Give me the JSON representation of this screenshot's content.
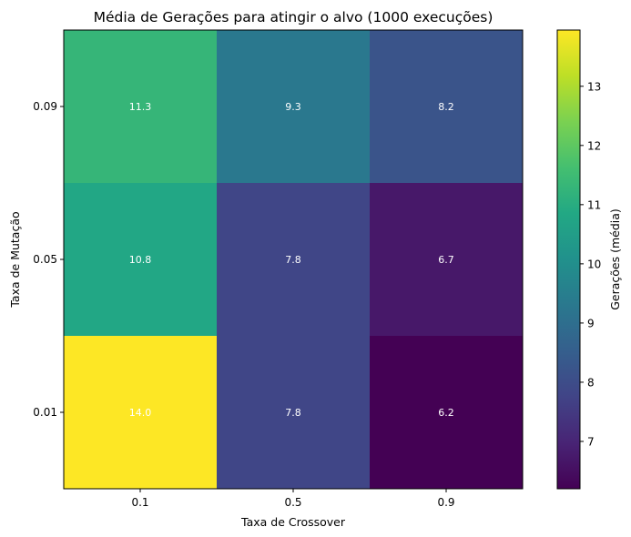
{
  "chart_data": {
    "type": "heatmap",
    "title": "Média de Gerações para atingir o alvo (1000 execuções)",
    "xlabel": "Taxa de Crossover",
    "ylabel": "Taxa de Mutação",
    "x_categories": [
      "0.1",
      "0.5",
      "0.9"
    ],
    "y_categories": [
      "0.09",
      "0.05",
      "0.01"
    ],
    "values": [
      [
        11.3,
        9.3,
        8.2
      ],
      [
        10.8,
        7.8,
        6.7
      ],
      [
        14.0,
        7.8,
        6.2
      ]
    ],
    "cell_labels": [
      [
        "11.3",
        "9.3",
        "8.2"
      ],
      [
        "10.8",
        "7.8",
        "6.7"
      ],
      [
        "14.0",
        "7.8",
        "6.2"
      ]
    ],
    "colormap": "viridis",
    "colorbar": {
      "label": "Gerações (média)",
      "min": 6.2,
      "max": 13.95,
      "ticks": [
        "7",
        "8",
        "9",
        "10",
        "11",
        "12",
        "13"
      ]
    }
  }
}
